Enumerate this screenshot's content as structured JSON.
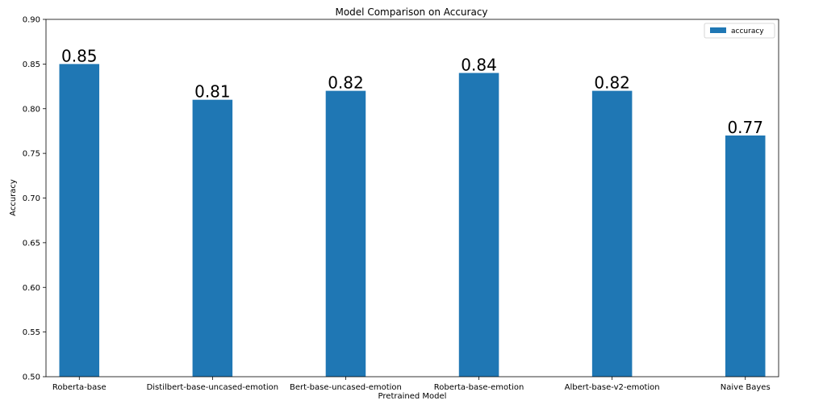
{
  "chart_data": {
    "type": "bar",
    "title": "Model Comparison on Accuracy",
    "xlabel": "Pretrained Model",
    "ylabel": "Accuracy",
    "categories": [
      "Roberta-base",
      "Distilbert-base-uncased-emotion",
      "Bert-base-uncased-emotion",
      "Roberta-base-emotion",
      "Albert-base-v2-emotion",
      "Naive Bayes"
    ],
    "series": [
      {
        "name": "accuracy",
        "values": [
          0.85,
          0.81,
          0.82,
          0.84,
          0.82,
          0.77
        ],
        "color": "#1f77b4"
      }
    ],
    "data_labels": [
      "0.85",
      "0.81",
      "0.82",
      "0.84",
      "0.82",
      "0.77"
    ],
    "ylim": [
      0.5,
      0.9
    ],
    "yticks": [
      0.5,
      0.55,
      0.6,
      0.65,
      0.7,
      0.75,
      0.8,
      0.85,
      0.9
    ],
    "ytick_labels": [
      "0.50",
      "0.55",
      "0.60",
      "0.65",
      "0.70",
      "0.75",
      "0.80",
      "0.85",
      "0.90"
    ],
    "grid": false,
    "legend": "top-right"
  }
}
